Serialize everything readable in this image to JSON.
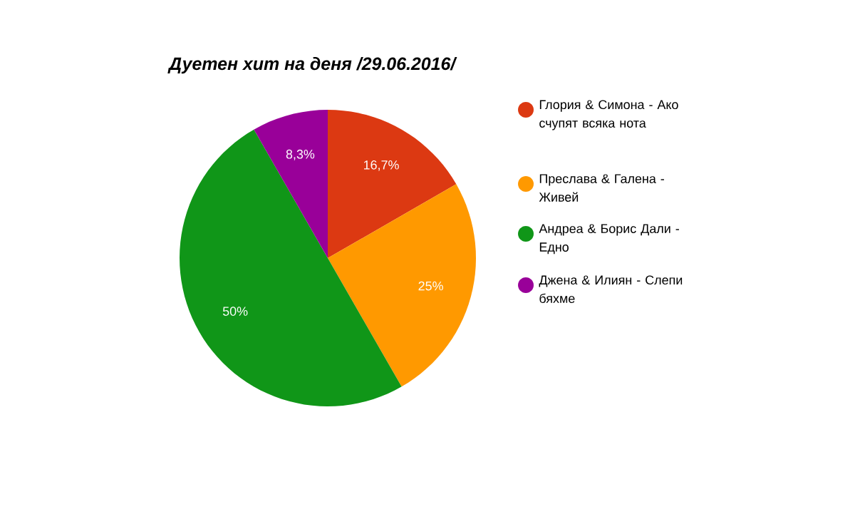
{
  "chart_data": {
    "type": "pie",
    "title": "Дуетен хит на деня /29.06.2016/",
    "categories": [
      "Глория & Симона - Ако счупят всяка нота",
      "Преслава & Галена - Живей",
      "Андреа & Борис Дали - Едно",
      "Джена & Илиян - Слепи бяхме"
    ],
    "values": [
      16.7,
      25,
      50,
      8.3
    ],
    "value_labels": [
      "16,7%",
      "25%",
      "50%",
      "8,3%"
    ],
    "colors": [
      "#dc3912",
      "#ff9900",
      "#109618",
      "#990099"
    ],
    "legend": "right"
  }
}
